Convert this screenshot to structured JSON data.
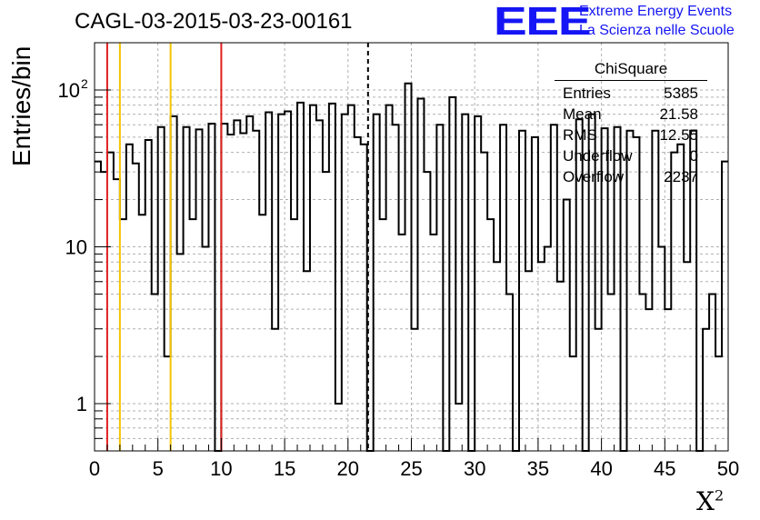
{
  "chart_data": {
    "type": "histogram",
    "title": "CAGL-03-2015-03-23-00161",
    "xlabel": "X",
    "xlabel_sup": "2",
    "ylabel": "Entries/bin",
    "xlim": [
      0,
      50
    ],
    "ylim": [
      0.5,
      200
    ],
    "yscale": "log",
    "bin_width": 0.5,
    "x_ticks": [
      0,
      5,
      10,
      15,
      20,
      25,
      30,
      35,
      40,
      45,
      50
    ],
    "y_ticks": [
      {
        "value": 1,
        "label": "1"
      },
      {
        "value": 10,
        "label": "10"
      },
      {
        "value": 100,
        "label": "10",
        "sup": "2"
      }
    ],
    "grid": true,
    "values": [
      35,
      30,
      40,
      27,
      15,
      45,
      34,
      16,
      48,
      5,
      58,
      2,
      68,
      9,
      58,
      15,
      56,
      10,
      61,
      0,
      61,
      52,
      64,
      53,
      68,
      55,
      16,
      72,
      3,
      70,
      73,
      15,
      83,
      7,
      80,
      64,
      30,
      82,
      1,
      70,
      80,
      50,
      45,
      0.5,
      70,
      15,
      80,
      60,
      12,
      110,
      3,
      88,
      30,
      12,
      60,
      0.5,
      90,
      1,
      70,
      0.5,
      68,
      40,
      15,
      8,
      60,
      5,
      0.5,
      55,
      7,
      50,
      8,
      10,
      60,
      6,
      20,
      2,
      65,
      0.5,
      70,
      3,
      57,
      5,
      58,
      0.5,
      55,
      50,
      5,
      4,
      55,
      10,
      4,
      40,
      45,
      8,
      55,
      0,
      3,
      5,
      2,
      35
    ],
    "vertical_lines": [
      {
        "x": 1,
        "color": "#e02020",
        "style": "solid"
      },
      {
        "x": 2,
        "color": "#f5c400",
        "style": "solid"
      },
      {
        "x": 6,
        "color": "#f5c400",
        "style": "solid"
      },
      {
        "x": 10,
        "color": "#e02020",
        "style": "solid"
      },
      {
        "x": 21.58,
        "color": "#000000",
        "style": "dashed"
      }
    ],
    "legend_placement": "top-right",
    "stats": {
      "title": "ChiSquare",
      "rows": [
        {
          "label": "Entries",
          "value": "5385"
        },
        {
          "label": "Mean",
          "value": "21.58"
        },
        {
          "label": "RMS",
          "value": "12.55"
        },
        {
          "label": "Underflow",
          "value": "0"
        },
        {
          "label": "Overflow",
          "value": "2237"
        }
      ]
    }
  },
  "logo": {
    "mark": "EEE",
    "line1": "Extreme Energy Events",
    "line2": "La Scienza nelle Scuole",
    "color": "#1515f5"
  }
}
